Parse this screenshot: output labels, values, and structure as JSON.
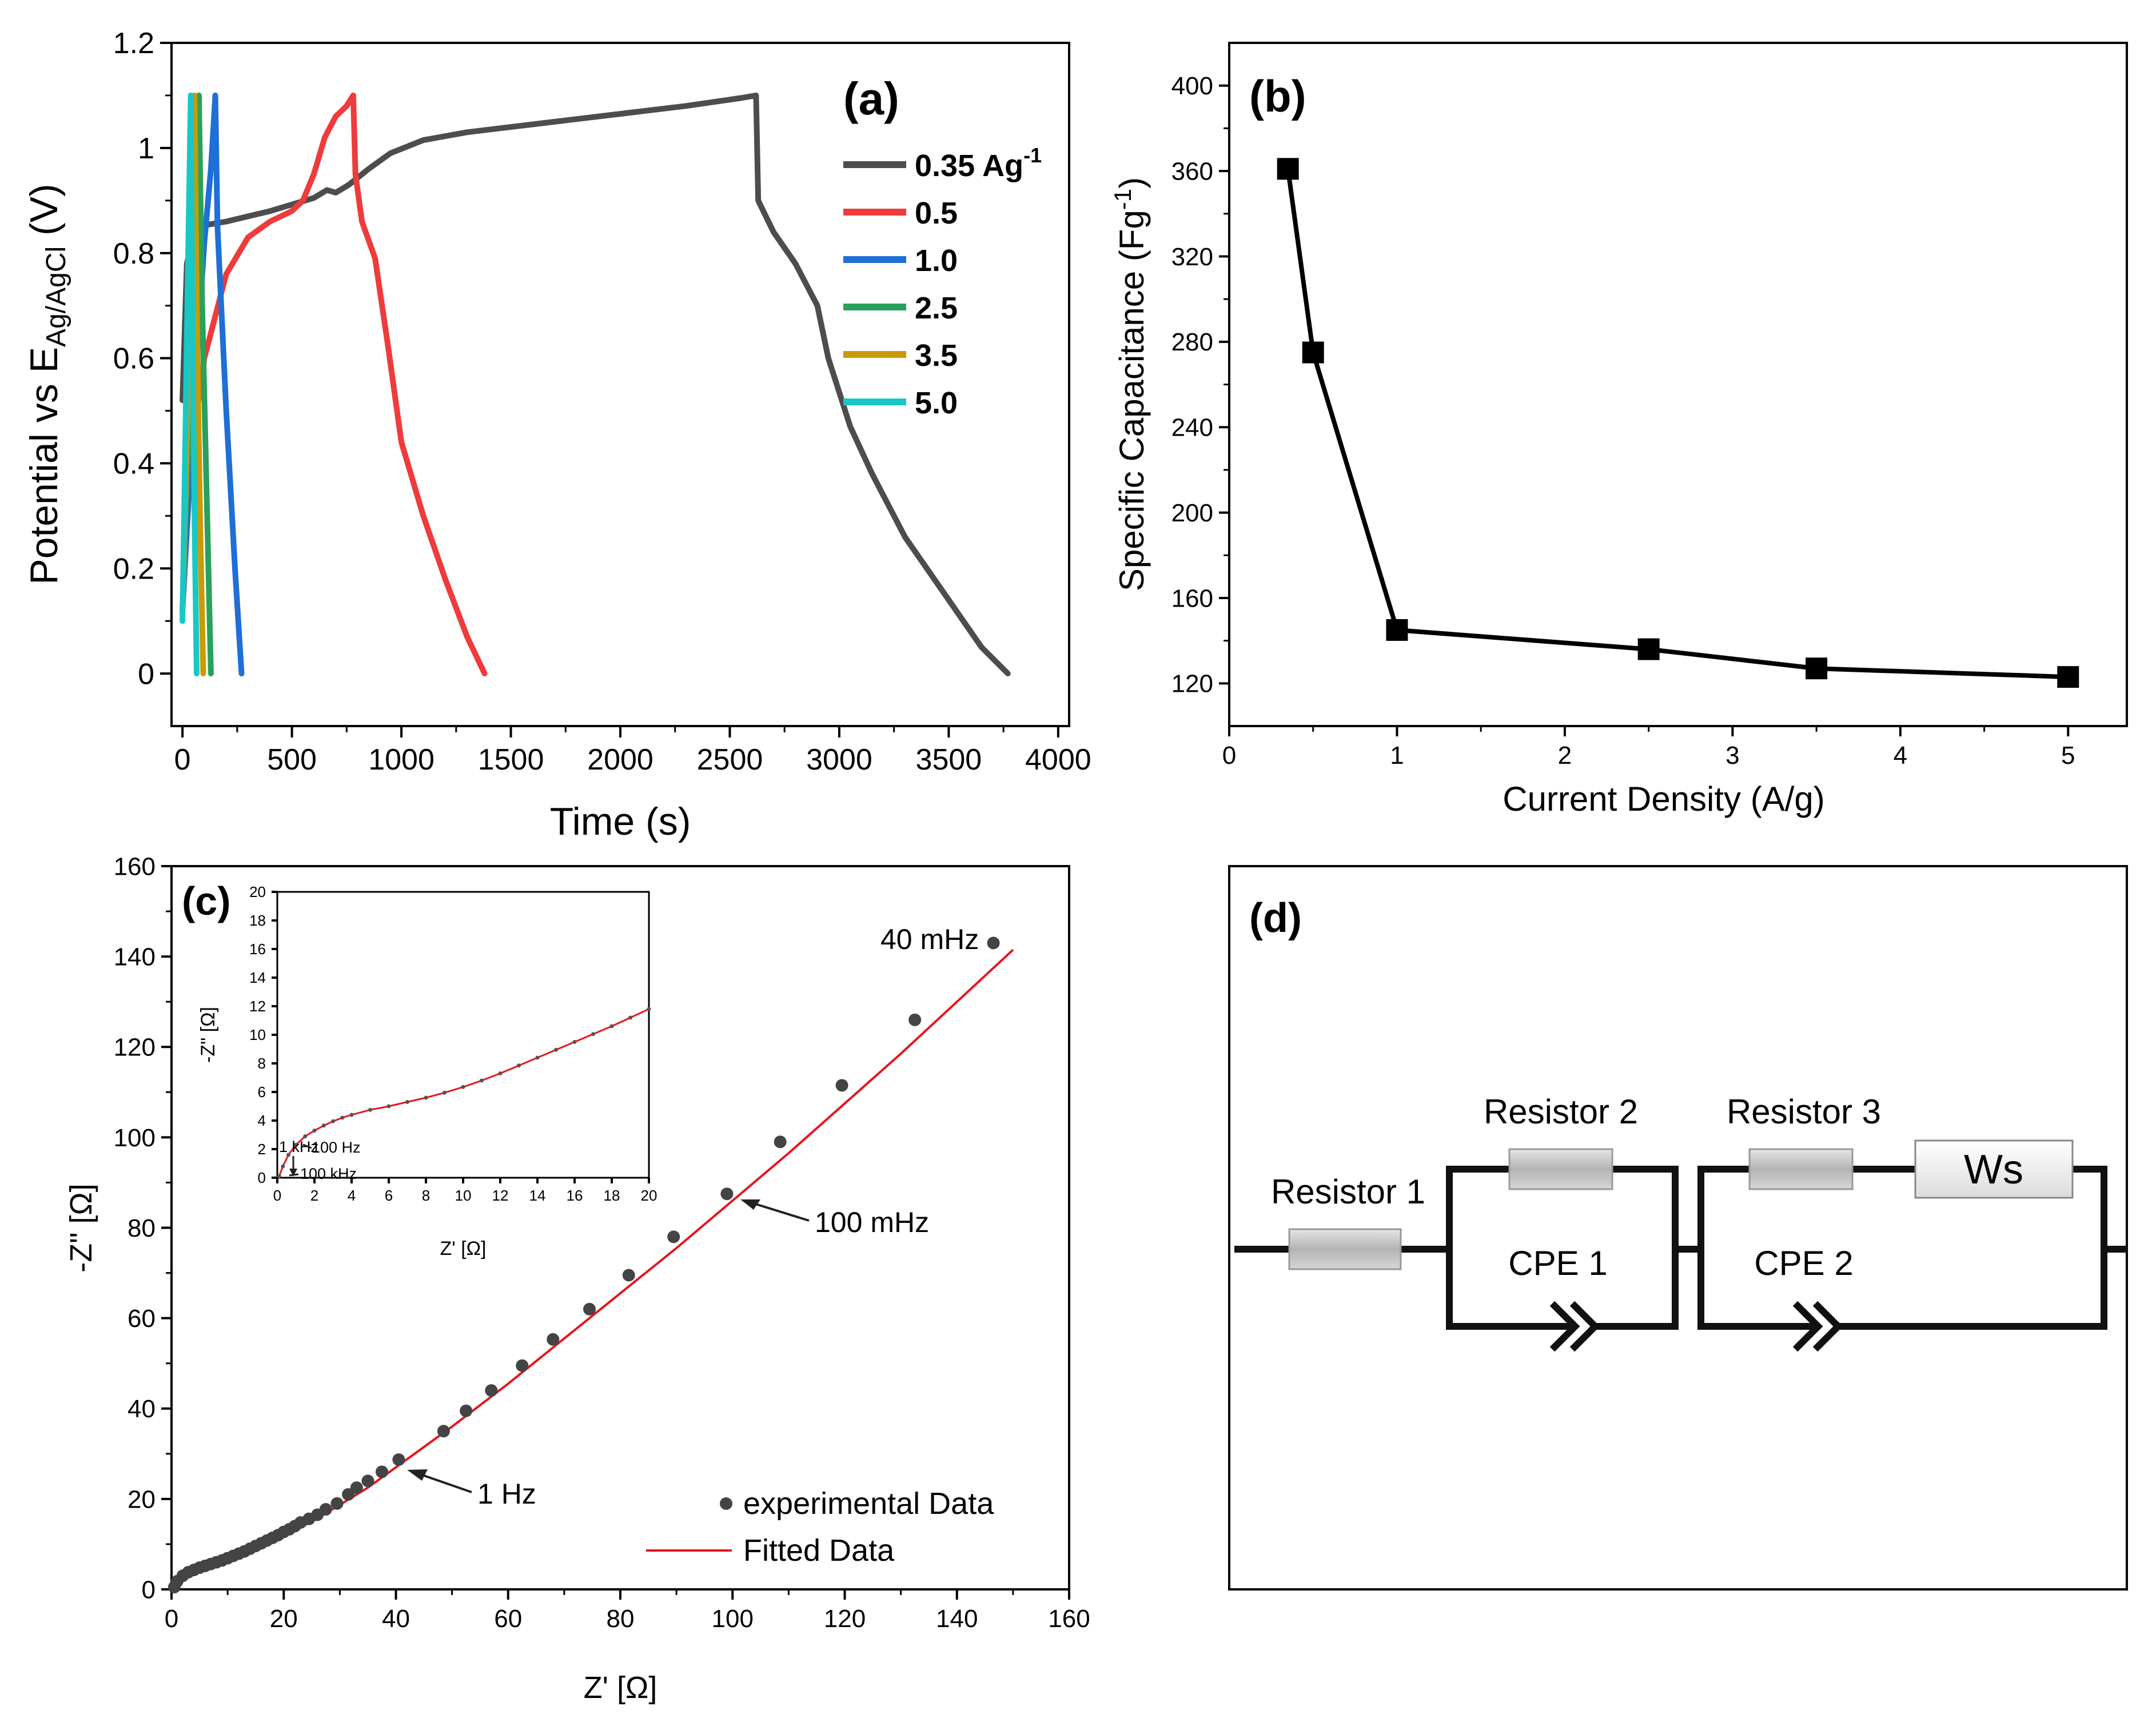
{
  "colors": {
    "axis": "#000000",
    "s035": "#4d4d4d",
    "s05": "#ef3b3b",
    "s10": "#1e6fd6",
    "s25": "#2aa15a",
    "s35": "#c99a06",
    "s50": "#19c7c7",
    "fit": "#e8141c",
    "exp": "#444444",
    "box_gray": "#bdbdbd"
  },
  "chart_data": [
    {
      "panel": "(a)",
      "type": "line",
      "xlabel": "Time (s)",
      "ylabel_main": "Potential vs E",
      "ylabel_sub": "Ag/AgCl",
      "ylabel_unit": " (V)",
      "xlim": [
        -50,
        4050
      ],
      "ylim": [
        -0.1,
        1.2
      ],
      "x_ticks": [
        0,
        500,
        1000,
        1500,
        2000,
        2500,
        3000,
        3500,
        4000
      ],
      "x_tick_labels": [
        "0",
        "500",
        "1000",
        "1500",
        "2000",
        "2500",
        "3000",
        "3500",
        "4000"
      ],
      "y_ticks": [
        0,
        0.2,
        0.4,
        0.6,
        0.8,
        1.0,
        1.2
      ],
      "y_tick_labels": [
        "0",
        "0.2",
        "0.4",
        "0.6",
        "0.8",
        "1",
        "1.2"
      ],
      "legend_position": "top-right",
      "series": [
        {
          "name": "0.35 Ag",
          "name_sup": "-1",
          "color_key": "s035",
          "points": [
            [
              0,
              0.52
            ],
            [
              20,
              0.78
            ],
            [
              60,
              0.85
            ],
            [
              200,
              0.86
            ],
            [
              400,
              0.88
            ],
            [
              600,
              0.905
            ],
            [
              660,
              0.92
            ],
            [
              700,
              0.915
            ],
            [
              760,
              0.93
            ],
            [
              850,
              0.96
            ],
            [
              950,
              0.99
            ],
            [
              1100,
              1.015
            ],
            [
              1300,
              1.03
            ],
            [
              1600,
              1.045
            ],
            [
              2000,
              1.065
            ],
            [
              2300,
              1.08
            ],
            [
              2550,
              1.095
            ],
            [
              2620,
              1.1
            ],
            [
              2630,
              0.9
            ],
            [
              2700,
              0.84
            ],
            [
              2800,
              0.78
            ],
            [
              2900,
              0.7
            ],
            [
              2950,
              0.6
            ],
            [
              3050,
              0.47
            ],
            [
              3150,
              0.38
            ],
            [
              3300,
              0.26
            ],
            [
              3500,
              0.14
            ],
            [
              3650,
              0.05
            ],
            [
              3770,
              0.0
            ]
          ]
        },
        {
          "name": "0.5",
          "color_key": "s05",
          "points": [
            [
              0,
              0.12
            ],
            [
              40,
              0.42
            ],
            [
              100,
              0.6
            ],
            [
              200,
              0.76
            ],
            [
              300,
              0.83
            ],
            [
              400,
              0.86
            ],
            [
              500,
              0.88
            ],
            [
              550,
              0.9
            ],
            [
              600,
              0.95
            ],
            [
              650,
              1.02
            ],
            [
              700,
              1.06
            ],
            [
              750,
              1.08
            ],
            [
              780,
              1.1
            ],
            [
              790,
              0.95
            ],
            [
              820,
              0.86
            ],
            [
              880,
              0.79
            ],
            [
              940,
              0.62
            ],
            [
              1000,
              0.44
            ],
            [
              1100,
              0.3
            ],
            [
              1200,
              0.18
            ],
            [
              1300,
              0.07
            ],
            [
              1380,
              0.0
            ]
          ]
        },
        {
          "name": "1.0",
          "color_key": "s10",
          "points": [
            [
              0,
              0.12
            ],
            [
              50,
              0.5
            ],
            [
              100,
              0.82
            ],
            [
              130,
              0.96
            ],
            [
              150,
              1.1
            ],
            [
              160,
              0.85
            ],
            [
              200,
              0.5
            ],
            [
              240,
              0.2
            ],
            [
              270,
              0.0
            ]
          ]
        },
        {
          "name": "2.5",
          "color_key": "s25",
          "points": [
            [
              0,
              0.12
            ],
            [
              40,
              0.6
            ],
            [
              60,
              0.9
            ],
            [
              75,
              1.1
            ],
            [
              90,
              0.7
            ],
            [
              110,
              0.35
            ],
            [
              130,
              0.0
            ]
          ]
        },
        {
          "name": "3.5",
          "color_key": "s35",
          "points": [
            [
              0,
              0.12
            ],
            [
              30,
              0.6
            ],
            [
              45,
              0.9
            ],
            [
              55,
              1.1
            ],
            [
              65,
              0.7
            ],
            [
              80,
              0.3
            ],
            [
              95,
              0.0
            ]
          ]
        },
        {
          "name": "5.0",
          "color_key": "s50",
          "points": [
            [
              0,
              0.1
            ],
            [
              15,
              0.5
            ],
            [
              30,
              0.9
            ],
            [
              38,
              1.1
            ],
            [
              45,
              0.7
            ],
            [
              55,
              0.3
            ],
            [
              65,
              0.0
            ]
          ]
        }
      ]
    },
    {
      "panel": "(b)",
      "type": "line",
      "xlabel": "Current Density (A/g)",
      "ylabel_main": "Specific Capacitance (Fg",
      "ylabel_sup": "-1",
      "ylabel_end": ")",
      "xlim": [
        0,
        5.35
      ],
      "ylim": [
        100,
        420
      ],
      "x_ticks": [
        0,
        1,
        2,
        3,
        4,
        5
      ],
      "x_tick_labels": [
        "0",
        "1",
        "2",
        "3",
        "4",
        "5"
      ],
      "y_ticks": [
        120,
        160,
        200,
        240,
        280,
        320,
        360,
        400
      ],
      "y_tick_labels": [
        "120",
        "160",
        "200",
        "240",
        "280",
        "320",
        "360",
        "400"
      ],
      "series": [
        {
          "x": [
            0.35,
            0.5,
            1.0,
            2.5,
            3.5,
            5.0
          ],
          "values": [
            361,
            275,
            145,
            136,
            127,
            123
          ]
        }
      ]
    },
    {
      "panel": "(c)",
      "type": "scatter",
      "xlabel": "Z' [Ω]",
      "ylabel": "-Z\" [Ω]",
      "xlim": [
        0,
        160
      ],
      "ylim": [
        0,
        160
      ],
      "x_ticks": [
        0,
        20,
        40,
        60,
        80,
        100,
        120,
        140,
        160
      ],
      "x_tick_labels": [
        "0",
        "20",
        "40",
        "60",
        "80",
        "100",
        "120",
        "140",
        "160"
      ],
      "y_ticks": [
        0,
        20,
        40,
        60,
        80,
        100,
        120,
        140,
        160
      ],
      "y_tick_labels": [
        "0",
        "20",
        "40",
        "60",
        "80",
        "100",
        "120",
        "140",
        "160"
      ],
      "legend": [
        "experimental Data",
        "Fitted Data"
      ],
      "annotations": [
        "40 mHz",
        "100 mHz",
        "1 Hz"
      ],
      "experimental": {
        "x": [
          0.5,
          1,
          2,
          3,
          4,
          5,
          6,
          7,
          8,
          9,
          10,
          11,
          12,
          13,
          14,
          15,
          16,
          17,
          18,
          19,
          20,
          21,
          22,
          23,
          24.5,
          26,
          27.5,
          29.5,
          31.5,
          33,
          35,
          37.5,
          40.5,
          48.5,
          52.5,
          57,
          62.5,
          68,
          74.5,
          81.5,
          89.5,
          99,
          108.5,
          119.5,
          132.5,
          146.5
        ],
        "y": [
          0.5,
          1.8,
          3,
          3.8,
          4.3,
          4.8,
          5.2,
          5.6,
          6,
          6.4,
          6.9,
          7.4,
          7.9,
          8.4,
          9,
          9.6,
          10.2,
          10.8,
          11.4,
          12,
          12.7,
          13.3,
          14,
          14.8,
          15.6,
          16.5,
          17.7,
          19,
          21,
          22.5,
          24,
          26,
          28.7,
          35,
          39.5,
          44,
          49.5,
          55.3,
          62,
          69.5,
          78,
          87.5,
          99,
          111.5,
          126,
          143
        ]
      },
      "fitted": {
        "x": [
          0,
          0.5,
          1,
          2,
          3,
          5,
          8,
          10,
          15,
          20,
          25,
          30,
          35,
          40,
          50,
          60,
          70,
          80,
          90,
          100,
          110,
          120,
          130,
          140,
          150
        ],
        "y": [
          0,
          1.5,
          2.5,
          3.5,
          4.2,
          5.2,
          6.3,
          7,
          9.2,
          11.8,
          15,
          18.7,
          22.5,
          27,
          36,
          45.5,
          55.5,
          65.5,
          75.5,
          86,
          96.5,
          107.5,
          118.5,
          130,
          141.5
        ]
      },
      "inset": {
        "xlabel": "Z' [Ω]",
        "ylabel": "-Z\" [Ω]",
        "xlim": [
          0,
          20
        ],
        "ylim": [
          0,
          20
        ],
        "x_ticks": [
          0,
          2,
          4,
          6,
          8,
          10,
          12,
          14,
          16,
          18,
          20
        ],
        "x_tick_labels": [
          "0",
          "2",
          "4",
          "6",
          "8",
          "10",
          "12",
          "14",
          "16",
          "18",
          "20"
        ],
        "y_ticks": [
          0,
          2,
          4,
          6,
          8,
          10,
          12,
          14,
          16,
          18,
          20
        ],
        "y_tick_labels": [
          "0",
          "2",
          "4",
          "6",
          "8",
          "10",
          "12",
          "14",
          "16",
          "18",
          "20"
        ],
        "annotations": [
          "1 kHz",
          "100 Hz",
          "100 kHz"
        ],
        "curve": {
          "x": [
            0.1,
            0.3,
            0.6,
            1,
            1.5,
            2,
            2.5,
            3,
            3.5,
            4,
            5,
            6,
            7,
            8,
            9,
            10,
            11,
            12,
            13,
            14,
            15,
            16,
            17,
            18,
            19,
            20
          ],
          "y": [
            0.1,
            0.8,
            1.6,
            2.3,
            2.9,
            3.3,
            3.65,
            3.95,
            4.2,
            4.4,
            4.75,
            5.0,
            5.3,
            5.6,
            5.95,
            6.35,
            6.8,
            7.3,
            7.85,
            8.4,
            8.95,
            9.5,
            10.05,
            10.6,
            11.2,
            11.8
          ]
        }
      }
    }
  ],
  "panel_d": {
    "label": "(d)",
    "resistor1": "Resistor 1",
    "resistor2": "Resistor 2",
    "resistor3": "Resistor 3",
    "cpe1": "CPE 1",
    "cpe2": "CPE 2",
    "ws": "Ws"
  }
}
